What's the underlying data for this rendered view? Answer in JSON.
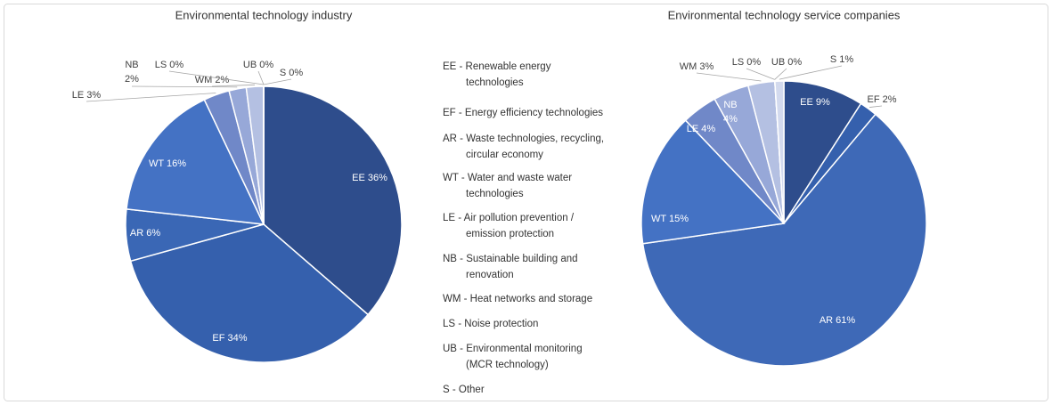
{
  "chart_data": [
    {
      "type": "pie",
      "title": "Environmental technology industry",
      "categories": [
        "EE",
        "EF",
        "AR",
        "WT",
        "LE",
        "NB",
        "WM",
        "LS",
        "UB",
        "S"
      ],
      "values": [
        36,
        34,
        6,
        16,
        3,
        2,
        2,
        0,
        0,
        0
      ],
      "value_labels": [
        "36%",
        "34%",
        "6%",
        "16%",
        "3%",
        "2%",
        "2%",
        "0%",
        "0%",
        "0%"
      ],
      "colors": [
        "#2e4d8c",
        "#3560ad",
        "#3a67b5",
        "#4472c4",
        "#7088c8",
        "#97a8d8",
        "#b4c0e2",
        "#c9d2ea",
        "#cdd5ec",
        "#d3daee"
      ]
    },
    {
      "type": "pie",
      "title": "Environmental technology service companies",
      "categories": [
        "EE",
        "EF",
        "AR",
        "WT",
        "LE",
        "NB",
        "WM",
        "LS",
        "UB",
        "S"
      ],
      "values": [
        9,
        2,
        61,
        15,
        4,
        4,
        3,
        0,
        0,
        1
      ],
      "value_labels": [
        "9%",
        "2%",
        "61%",
        "15%",
        "4%",
        "4%",
        "3%",
        "0%",
        "0%",
        "1%"
      ],
      "colors": [
        "#2e4d8c",
        "#3560ad",
        "#3e69b7",
        "#4472c4",
        "#7088c8",
        "#97a8d8",
        "#b4c0e2",
        "#c9d2ea",
        "#cdd5ec",
        "#d3daee"
      ]
    }
  ],
  "legend": [
    [
      "EE - Renewable energy",
      "technologies"
    ],
    [
      "EF - Energy efficiency technologies"
    ],
    [
      "AR - Waste technologies, recycling,",
      "circular economy"
    ],
    [
      "WT - Water and waste water",
      "technologies"
    ],
    [
      "LE - Air pollution prevention /",
      "emission protection"
    ],
    [
      "NB - Sustainable building and",
      "renovation"
    ],
    [
      "WM - Heat networks and storage"
    ],
    [
      "LS - Noise protection"
    ],
    [
      "UB - Environmental monitoring",
      "(MCR technology)"
    ],
    [
      "S  - Other"
    ]
  ]
}
